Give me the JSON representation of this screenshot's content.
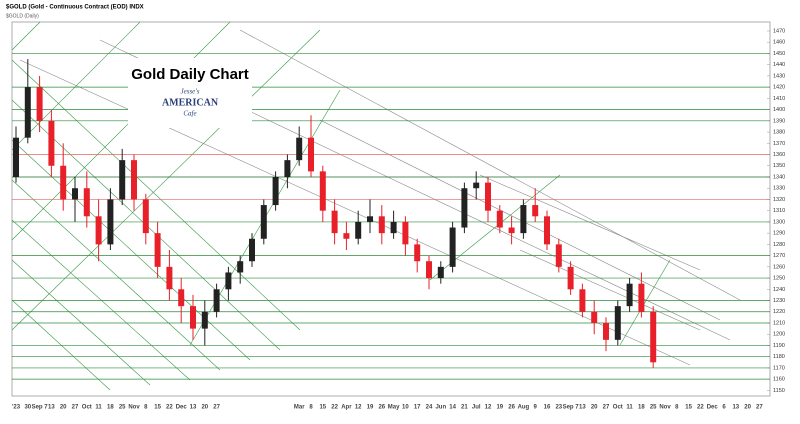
{
  "chart_data": {
    "type": "candlestick",
    "header": "$GOLD (Gold - Continuous Contract (EOD) INDX",
    "subheader": "$GOLD (Daily)",
    "title": "Gold Daily Chart",
    "logo": [
      "Jesse's",
      "AMERICAN",
      "Cafe"
    ],
    "categories": [
      "'23",
      "30",
      "Sep 7",
      "13",
      "20",
      "27",
      "Oct",
      "11",
      "18",
      "25",
      "Nov",
      "8",
      "15",
      "22",
      "Dec",
      "13",
      "20",
      "27",
      null,
      null,
      null,
      null,
      null,
      null,
      "Mar",
      "8",
      "15",
      "22",
      "Apr",
      "12",
      "19",
      "26",
      "May",
      "10",
      "17",
      "24",
      "Jun",
      "14",
      "21",
      "Jul",
      "12",
      "19",
      "26",
      "Aug",
      "9",
      "16",
      "23",
      "Sep 7",
      "13",
      "20",
      "27",
      "Oct",
      "11",
      "18",
      "25",
      "Nov",
      "8",
      "15",
      "22",
      "Dec",
      "6",
      "13",
      "20",
      "27"
    ],
    "open": [
      1340,
      1375,
      1420,
      1390,
      1350,
      1320,
      1330,
      1305,
      1280,
      1320,
      1355,
      1320,
      1290,
      1260,
      1240,
      1225,
      1205,
      1220,
      1240,
      1255,
      1265,
      1285,
      1315,
      1340,
      1355,
      1375,
      1345,
      1310,
      1290,
      1285,
      1300,
      1305,
      1290,
      1300,
      1280,
      1265,
      1250,
      1260,
      1295,
      1330,
      1335,
      1310,
      1295,
      1290,
      1315,
      1305,
      1280,
      1260,
      1240,
      1220,
      1210,
      1195,
      1225,
      1245,
      1220,
      null,
      null,
      null,
      null,
      null,
      null,
      null,
      null,
      null
    ],
    "high": [
      1385,
      1445,
      1430,
      1400,
      1370,
      1340,
      1345,
      1320,
      1330,
      1365,
      1360,
      1325,
      1300,
      1275,
      1250,
      1235,
      1230,
      1245,
      1260,
      1270,
      1290,
      1320,
      1345,
      1360,
      1385,
      1395,
      1350,
      1320,
      1300,
      1310,
      1320,
      1315,
      1310,
      1305,
      1285,
      1270,
      1265,
      1300,
      1335,
      1345,
      1340,
      1315,
      1305,
      1320,
      1330,
      1310,
      1285,
      1265,
      1245,
      1230,
      1215,
      1230,
      1250,
      1255,
      1225,
      null,
      null,
      null,
      null,
      null,
      null,
      null,
      null,
      null
    ],
    "low": [
      1335,
      1370,
      1380,
      1340,
      1310,
      1300,
      1295,
      1265,
      1275,
      1315,
      1310,
      1280,
      1250,
      1230,
      1210,
      1195,
      1190,
      1215,
      1230,
      1245,
      1260,
      1280,
      1310,
      1330,
      1350,
      1340,
      1300,
      1280,
      1275,
      1280,
      1290,
      1280,
      1285,
      1270,
      1255,
      1240,
      1245,
      1255,
      1290,
      1320,
      1300,
      1290,
      1280,
      1285,
      1300,
      1275,
      1255,
      1235,
      1215,
      1200,
      1185,
      1190,
      1220,
      1215,
      1170,
      null,
      null,
      null,
      null,
      null,
      null,
      null,
      null,
      null
    ],
    "close": [
      1375,
      1420,
      1390,
      1350,
      1320,
      1330,
      1305,
      1280,
      1320,
      1355,
      1320,
      1290,
      1260,
      1240,
      1225,
      1205,
      1220,
      1240,
      1255,
      1265,
      1285,
      1315,
      1340,
      1355,
      1375,
      1345,
      1310,
      1290,
      1285,
      1300,
      1305,
      1290,
      1300,
      1280,
      1265,
      1250,
      1260,
      1295,
      1330,
      1335,
      1310,
      1295,
      1290,
      1315,
      1305,
      1280,
      1260,
      1240,
      1220,
      1210,
      1195,
      1225,
      1245,
      1220,
      1175,
      null,
      null,
      null,
      null,
      null,
      null,
      null,
      null,
      null
    ],
    "up_color": "#222222",
    "down_color": "#e8202a",
    "ylim": [
      1145,
      1478
    ],
    "yticks": [
      1150,
      1160,
      1170,
      1180,
      1190,
      1200,
      1210,
      1220,
      1230,
      1240,
      1250,
      1260,
      1270,
      1280,
      1290,
      1300,
      1310,
      1320,
      1330,
      1340,
      1350,
      1360,
      1370,
      1380,
      1390,
      1400,
      1410,
      1420,
      1430,
      1440,
      1450,
      1460,
      1470
    ],
    "levels": [
      {
        "value": 1450,
        "color": "#2e8b3a"
      },
      {
        "value": 1420,
        "color": "#2e8b3a"
      },
      {
        "value": 1400,
        "color": "#2e8b3a"
      },
      {
        "value": 1390,
        "color": "#2e8b3a"
      },
      {
        "value": 1360,
        "color": "#e06666"
      },
      {
        "value": 1340,
        "color": "#1f6b2a"
      },
      {
        "value": 1320,
        "color": "#e06666"
      },
      {
        "value": 1300,
        "color": "#2e8b3a"
      },
      {
        "value": 1270,
        "color": "#2e8b3a"
      },
      {
        "value": 1250,
        "color": "#2e8b3a"
      },
      {
        "value": 1230,
        "color": "#2e8b3a"
      },
      {
        "value": 1220,
        "color": "#2e8b3a"
      },
      {
        "value": 1210,
        "color": "#2e8b3a"
      },
      {
        "value": 1190,
        "color": "#2e8b3a"
      },
      {
        "value": 1180,
        "color": "#2e8b3a"
      },
      {
        "value": 1170,
        "color": "#2e8b3a"
      },
      {
        "value": 1160,
        "color": "#2e8b3a"
      }
    ]
  }
}
